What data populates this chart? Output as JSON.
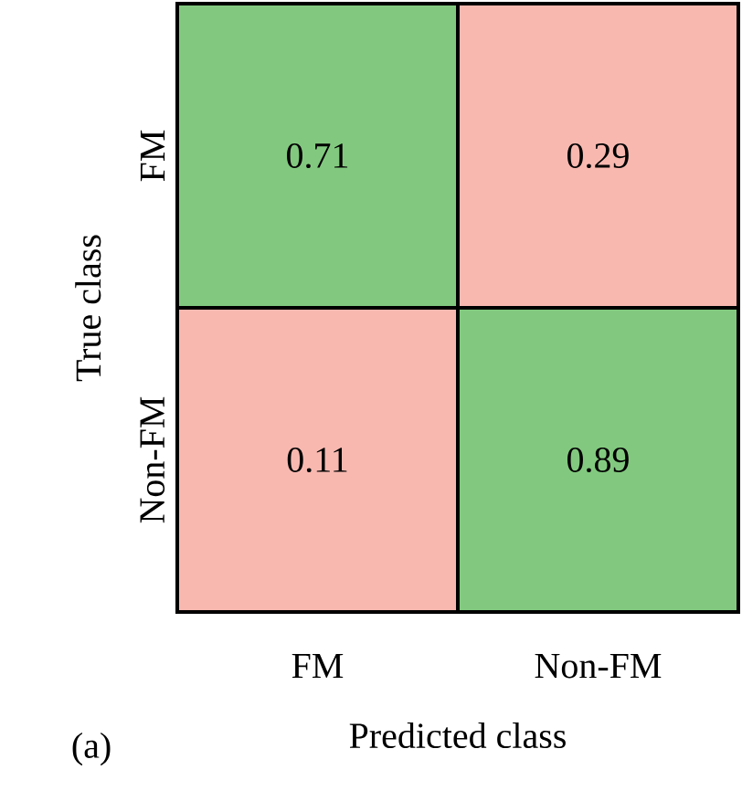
{
  "chart_data": {
    "type": "heatmap",
    "categories": [
      "FM",
      "Non-FM"
    ],
    "y_categories": [
      "FM",
      "Non-FM"
    ],
    "cells": [
      [
        0.71,
        0.29
      ],
      [
        0.11,
        0.89
      ]
    ],
    "colors": [
      [
        "#82c97f",
        "#f8b8b0"
      ],
      [
        "#f8b8b0",
        "#82c97f"
      ]
    ],
    "data_labels": true,
    "xlabel": "Predicted class",
    "ylabel": "True class",
    "annotations": [
      "(a)"
    ]
  }
}
